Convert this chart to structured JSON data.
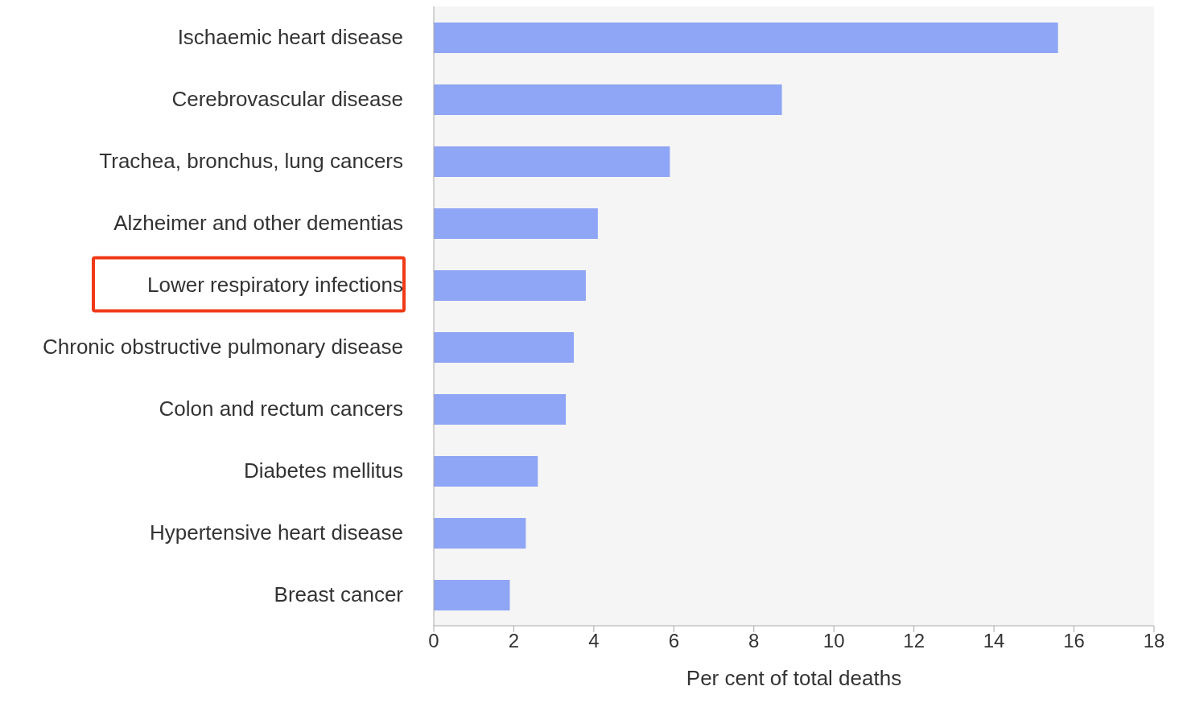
{
  "chart_data": {
    "type": "bar",
    "orientation": "horizontal",
    "xlabel": "Per cent of total deaths",
    "categories": [
      "Ischaemic heart disease",
      "Cerebrovascular disease",
      "Trachea, bronchus, lung cancers",
      "Alzheimer and other dementias",
      "Lower respiratory infections",
      "Chronic obstructive pulmonary disease",
      "Colon and rectum cancers",
      "Diabetes mellitus",
      "Hypertensive heart disease",
      "Breast cancer"
    ],
    "values": [
      15.6,
      8.7,
      5.9,
      4.1,
      3.8,
      3.5,
      3.3,
      2.6,
      2.3,
      1.9
    ],
    "color": "#8fa5f5",
    "xlim": [
      0,
      18
    ],
    "xticks": [
      0,
      2,
      4,
      6,
      8,
      10,
      12,
      14,
      16,
      18
    ],
    "grid": false
  }
}
